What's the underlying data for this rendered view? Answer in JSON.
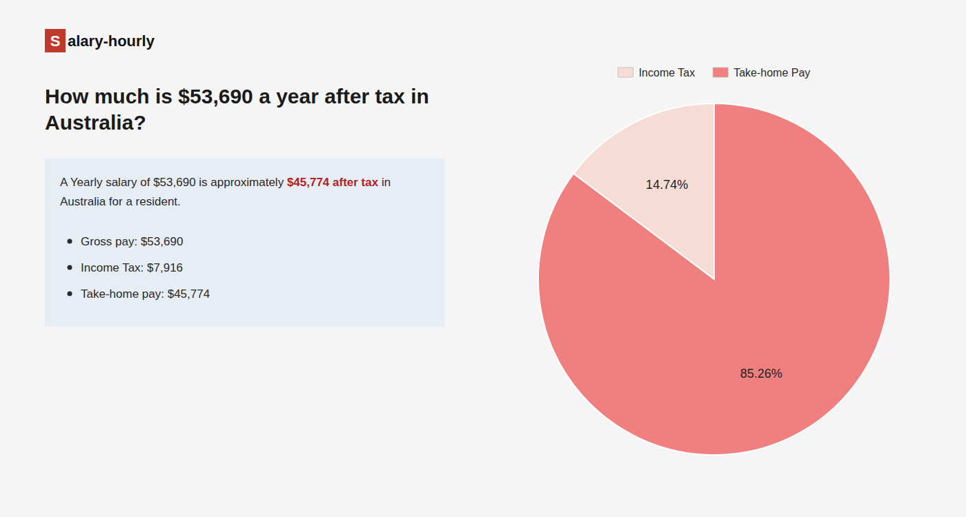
{
  "chart_data": {
    "type": "pie",
    "title": "How much is $53,690 a year after tax in Australia?",
    "annotations": [
      [
        {
          "text": "S",
          "color": "#c0392b"
        },
        {
          "text": "alary-hourly"
        }
      ],
      [
        {
          "text": "A Yearly salary of $53,690 is approximately "
        },
        {
          "text": "$45,774 after tax",
          "color": "#b22222"
        },
        {
          "text": " in"
        }
      ],
      [
        {
          "text": "Australia for a resident."
        }
      ],
      [
        {
          "text": "Gross pay: $53,690"
        }
      ],
      [
        {
          "text": "Income Tax: $7,916"
        }
      ],
      [
        {
          "text": "Take-home pay: $45,774"
        }
      ]
    ],
    "categories": [
      "Income Tax",
      "Take-home Pay"
    ],
    "values": [
      14.74,
      85.26
    ],
    "value_labels": [
      "14.74%",
      "85.26%"
    ],
    "colors": [
      "#f5ddd5",
      "#f08080"
    ],
    "data_labels": true,
    "legend": "top"
  }
}
